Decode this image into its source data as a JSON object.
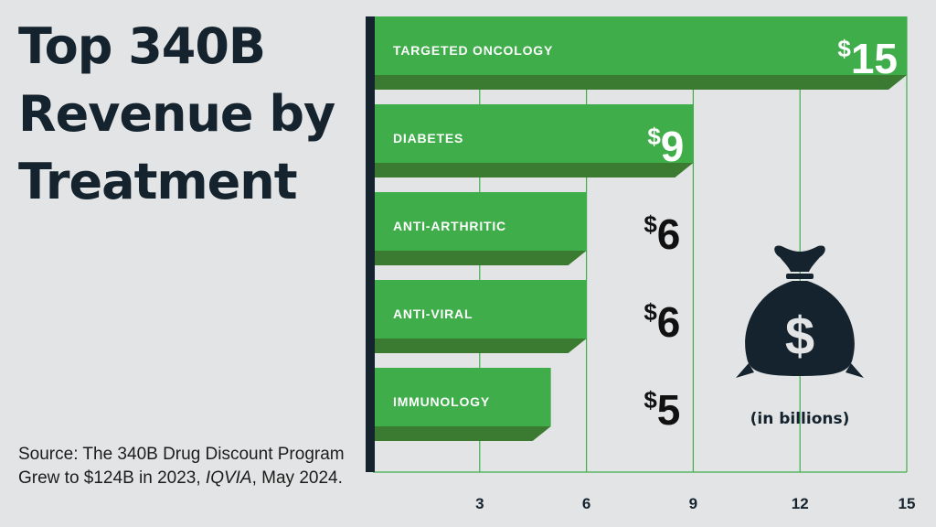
{
  "title": "Top 340B Revenue by Treatment",
  "source": {
    "prefix": "Source: The 340B Drug Discount Program Grew to $124B in 2023, ",
    "publisher": "IQVIA",
    "suffix": ", May 2024."
  },
  "colors": {
    "bar": "#3fae4a",
    "bar_shadow": "#3a7a31",
    "axis": "#14232e",
    "grid": "#3fae4a",
    "value_on_bar": "#ffffff",
    "value_off_bar": "#111111"
  },
  "chart_data": {
    "type": "bar",
    "orientation": "horizontal",
    "categories": [
      "TARGETED ONCOLOGY",
      "DIABETES",
      "ANTI-ARTHRITIC",
      "ANTI-VIRAL",
      "IMMUNOLOGY"
    ],
    "values": [
      15,
      9,
      6,
      6,
      5
    ],
    "value_labels": [
      "$15",
      "$9",
      "$6",
      "$6",
      "$5"
    ],
    "xlim": [
      0,
      15
    ],
    "xticks": [
      3,
      6,
      9,
      12,
      15
    ],
    "unit_label": "(in billions)",
    "icon": "money-bag-icon",
    "grid": true
  }
}
